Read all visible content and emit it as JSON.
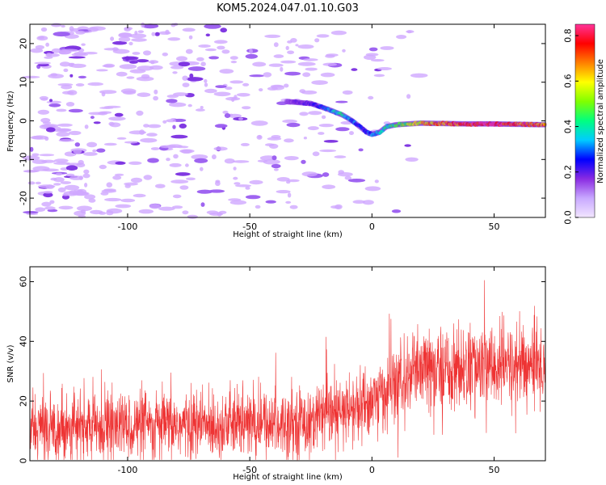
{
  "title": "KOM5.2024.047.01.10.G03",
  "chart_data": [
    {
      "type": "heatmap",
      "xlabel": "Height of straight line (km)",
      "ylabel": "Frequency (Hz)",
      "xlim": [
        -140,
        71
      ],
      "ylim": [
        -25,
        25
      ],
      "xticks": [
        -100,
        -50,
        0,
        50
      ],
      "xtick_labels": [
        "-100",
        "-50",
        "0",
        "50"
      ],
      "yticks": [
        -20,
        -10,
        0,
        10,
        20
      ],
      "ytick_labels": [
        "-20",
        "-10",
        "0",
        "10",
        "20"
      ],
      "colorbar": {
        "label": "Normalized spectral amplitude",
        "range": [
          0,
          0.85
        ],
        "ticks": [
          0.0,
          0.2,
          0.4,
          0.6,
          0.8
        ],
        "tick_labels": [
          "0.0",
          "0.2",
          "0.4",
          "0.6",
          "0.8"
        ],
        "colors": [
          "#f2e6ff",
          "#c8a8ff",
          "#8a2be2",
          "#0000ff",
          "#00ccff",
          "#00ff80",
          "#80ff00",
          "#ffff00",
          "#ff8000",
          "#ff0000",
          "#ff3399"
        ]
      },
      "ridge": {
        "x": [
          -35,
          -25,
          -18,
          -12,
          -8,
          -5,
          -2,
          0,
          3,
          6,
          10,
          15,
          20,
          30,
          40,
          50,
          60,
          71
        ],
        "y": [
          5,
          4.5,
          3,
          1.5,
          0,
          -1.5,
          -3,
          -3.5,
          -3,
          -1.5,
          -1,
          -0.8,
          -0.6,
          -0.7,
          -0.8,
          -0.8,
          -0.9,
          -1.0
        ],
        "amplitude": [
          0.15,
          0.2,
          0.3,
          0.4,
          0.3,
          0.25,
          0.25,
          0.3,
          0.35,
          0.4,
          0.45,
          0.5,
          0.6,
          0.7,
          0.8,
          0.85,
          0.75,
          0.7
        ]
      },
      "noise_extent_x": [
        -140,
        20
      ],
      "grid": false
    },
    {
      "type": "line",
      "xlabel": "Height of straight line (km)",
      "ylabel": "SNR (v/v)",
      "xlim": [
        -140,
        71
      ],
      "ylim": [
        0,
        65
      ],
      "xticks": [
        -100,
        -50,
        0,
        50
      ],
      "xtick_labels": [
        "-100",
        "-50",
        "0",
        "50"
      ],
      "yticks": [
        0,
        20,
        40,
        60
      ],
      "ytick_labels": [
        "0",
        "20",
        "40",
        "60"
      ],
      "trend": {
        "x": [
          -140,
          -100,
          -60,
          -30,
          -10,
          0,
          10,
          20,
          40,
          71
        ],
        "y": [
          11,
          11.5,
          12,
          13,
          16,
          20,
          25,
          30,
          31,
          32
        ]
      },
      "noise_amplitude": 6,
      "color": "#ee3333",
      "grid": false
    }
  ]
}
